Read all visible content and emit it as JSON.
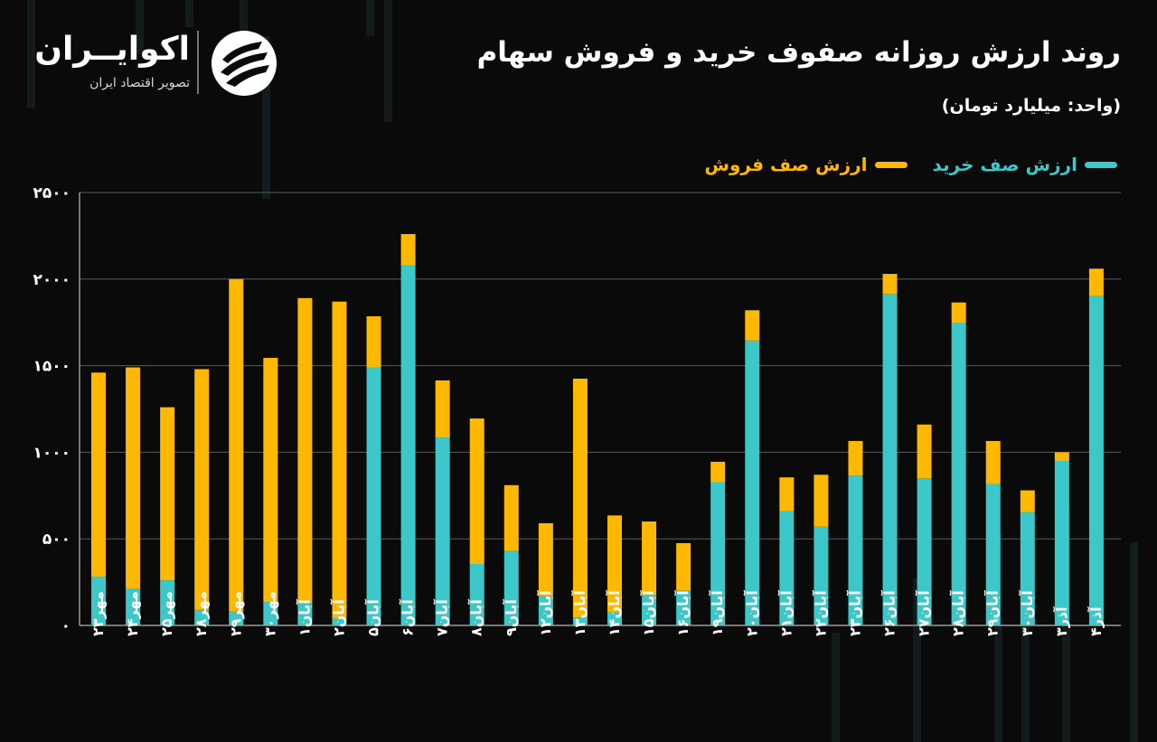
{
  "header": {
    "title": "روند ارزش روزانه صفوف خرید و فروش سهام",
    "unit": "(واحد: میلیارد تومان)"
  },
  "brand": {
    "name": "اکوایــران",
    "subtitle": "تصویر اقتصاد ایران",
    "logo_icon": "ecoiran-logo-icon"
  },
  "colors": {
    "buy": "#3cc8c8",
    "sell": "#ffb800",
    "background": "#0a0a0a",
    "grid": "#5a5a5a"
  },
  "chart_data": {
    "type": "bar",
    "stacked": true,
    "legend_position": "top-right",
    "grid": true,
    "ylim": [
      0,
      2500
    ],
    "yticks": [
      "۰",
      "۵۰۰",
      "۱۰۰۰",
      "۱۵۰۰",
      "۲۰۰۰",
      "۲۵۰۰"
    ],
    "ytick_values": [
      0,
      500,
      1000,
      1500,
      2000,
      2500
    ],
    "categories": [
      "مهر۲۳",
      "مهر۲۴",
      "مهر۲۵",
      "مهر۲۸",
      "مهر۲۹",
      "مهر۳۰",
      "آبان۱",
      "آبان۲",
      "آبان۵",
      "آبان۶",
      "آبان۷",
      "آبان۸",
      "آبان۹",
      "آبان۱۲",
      "آبان۱۳",
      "آبان۱۴",
      "آبان۱۵",
      "آبان۱۶",
      "آبان۱۹",
      "آبان۲۰",
      "آبان۲۱",
      "آبان۲۲",
      "آبان۲۳",
      "آبان۲۶",
      "آبان۲۷",
      "آبان۲۸",
      "آبان۲۹",
      "آبان۳۰",
      "آذر۳",
      "آذر۴"
    ],
    "series": [
      {
        "name": "ارزش صف خرید",
        "color_key": "buy",
        "values": [
          280,
          210,
          260,
          90,
          80,
          135,
          130,
          40,
          1490,
          2080,
          1085,
          355,
          430,
          170,
          45,
          75,
          175,
          200,
          825,
          1645,
          660,
          570,
          865,
          1915,
          850,
          1745,
          815,
          655,
          950,
          1905
        ]
      },
      {
        "name": "ارزش صف فروش",
        "color_key": "sell",
        "values": [
          1180,
          1280,
          1000,
          1390,
          1920,
          1410,
          1760,
          1830,
          295,
          180,
          330,
          840,
          380,
          420,
          1380,
          560,
          425,
          275,
          120,
          175,
          195,
          300,
          200,
          115,
          310,
          120,
          250,
          125,
          50,
          155
        ]
      }
    ]
  }
}
